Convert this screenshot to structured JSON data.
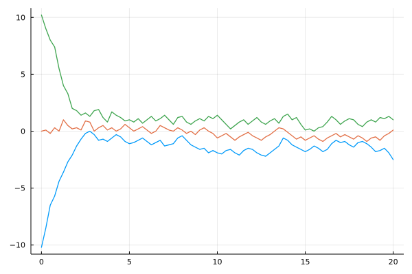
{
  "chart_data": {
    "type": "line",
    "title": "",
    "xlabel": "",
    "ylabel": "",
    "xlim": [
      -0.6,
      20.6
    ],
    "ylim": [
      -10.8,
      10.8
    ],
    "x_ticks": [
      0,
      5,
      10,
      15,
      20
    ],
    "x_tick_labels": [
      "0",
      "5",
      "10",
      "15",
      "20"
    ],
    "y_ticks": [
      -10,
      -5,
      0,
      5,
      10
    ],
    "y_tick_labels": [
      "−10",
      "−5",
      "0",
      "5",
      "10"
    ],
    "grid": true,
    "legend": "none",
    "series": [
      {
        "color": "#009AFA",
        "x": [
          0,
          0.25,
          0.5,
          0.75,
          1,
          1.25,
          1.5,
          1.75,
          2,
          2.25,
          2.5,
          2.75,
          3,
          3.25,
          3.5,
          3.75,
          4,
          4.25,
          4.5,
          4.75,
          5,
          5.25,
          5.5,
          5.75,
          6,
          6.25,
          6.5,
          6.75,
          7,
          7.25,
          7.5,
          7.75,
          8,
          8.25,
          8.5,
          8.75,
          9,
          9.25,
          9.5,
          9.75,
          10,
          10.25,
          10.5,
          10.75,
          11,
          11.25,
          11.5,
          11.75,
          12,
          12.25,
          12.5,
          12.75,
          13,
          13.25,
          13.5,
          13.75,
          14,
          14.25,
          14.5,
          14.75,
          15,
          15.25,
          15.5,
          15.75,
          16,
          16.25,
          16.5,
          16.75,
          17,
          17.25,
          17.5,
          17.75,
          18,
          18.25,
          18.5,
          18.75,
          19,
          19.25,
          19.5,
          19.75,
          20
        ],
        "values": [
          -10.2,
          -8.5,
          -6.5,
          -5.7,
          -4.4,
          -3.6,
          -2.7,
          -2.1,
          -1.3,
          -0.7,
          -0.2,
          0.0,
          -0.3,
          -0.8,
          -0.7,
          -0.9,
          -0.6,
          -0.3,
          -0.5,
          -0.9,
          -1.1,
          -1.0,
          -0.8,
          -0.6,
          -0.9,
          -1.2,
          -1.0,
          -0.8,
          -1.3,
          -1.2,
          -1.1,
          -0.6,
          -0.4,
          -0.8,
          -1.2,
          -1.4,
          -1.6,
          -1.5,
          -1.9,
          -1.7,
          -1.9,
          -2.0,
          -1.7,
          -1.6,
          -1.9,
          -2.1,
          -1.7,
          -1.5,
          -1.6,
          -1.9,
          -2.1,
          -2.2,
          -1.9,
          -1.6,
          -1.3,
          -0.6,
          -0.8,
          -1.2,
          -1.4,
          -1.6,
          -1.8,
          -1.6,
          -1.3,
          -1.5,
          -1.8,
          -1.6,
          -1.1,
          -0.8,
          -1.0,
          -0.9,
          -1.2,
          -1.4,
          -1.0,
          -0.9,
          -1.1,
          -1.4,
          -1.8,
          -1.7,
          -1.5,
          -1.9,
          -2.5
        ]
      },
      {
        "color": "#E26F46",
        "x": [
          0,
          0.25,
          0.5,
          0.75,
          1,
          1.25,
          1.5,
          1.75,
          2,
          2.25,
          2.5,
          2.75,
          3,
          3.25,
          3.5,
          3.75,
          4,
          4.25,
          4.5,
          4.75,
          5,
          5.25,
          5.5,
          5.75,
          6,
          6.25,
          6.5,
          6.75,
          7,
          7.25,
          7.5,
          7.75,
          8,
          8.25,
          8.5,
          8.75,
          9,
          9.25,
          9.5,
          9.75,
          10,
          10.25,
          10.5,
          10.75,
          11,
          11.25,
          11.5,
          11.75,
          12,
          12.25,
          12.5,
          12.75,
          13,
          13.25,
          13.5,
          13.75,
          14,
          14.25,
          14.5,
          14.75,
          15,
          15.25,
          15.5,
          15.75,
          16,
          16.25,
          16.5,
          16.75,
          17,
          17.25,
          17.5,
          17.75,
          18,
          18.25,
          18.5,
          18.75,
          19,
          19.25,
          19.5,
          19.75,
          20
        ],
        "values": [
          0.0,
          0.1,
          -0.2,
          0.3,
          0.0,
          1.0,
          0.5,
          0.2,
          0.3,
          0.1,
          0.9,
          0.8,
          0.0,
          0.3,
          0.5,
          0.1,
          0.3,
          0.0,
          0.2,
          0.6,
          0.3,
          0.0,
          0.2,
          0.4,
          0.1,
          -0.2,
          0.0,
          0.5,
          0.3,
          0.1,
          0.0,
          0.3,
          0.1,
          -0.2,
          0.0,
          -0.3,
          0.1,
          0.3,
          0.0,
          -0.2,
          -0.6,
          -0.4,
          -0.2,
          -0.5,
          -0.8,
          -0.5,
          -0.3,
          -0.1,
          -0.4,
          -0.6,
          -0.8,
          -0.5,
          -0.3,
          0.0,
          0.3,
          0.2,
          -0.1,
          -0.4,
          -0.7,
          -0.5,
          -0.8,
          -0.6,
          -0.4,
          -0.7,
          -0.9,
          -0.6,
          -0.4,
          -0.2,
          -0.5,
          -0.3,
          -0.5,
          -0.7,
          -0.4,
          -0.6,
          -0.9,
          -0.6,
          -0.5,
          -0.8,
          -0.4,
          -0.2,
          0.1
        ]
      },
      {
        "color": "#3EA44E",
        "x": [
          0,
          0.25,
          0.5,
          0.75,
          1,
          1.25,
          1.5,
          1.75,
          2,
          2.25,
          2.5,
          2.75,
          3,
          3.25,
          3.5,
          3.75,
          4,
          4.25,
          4.5,
          4.75,
          5,
          5.25,
          5.5,
          5.75,
          6,
          6.25,
          6.5,
          6.75,
          7,
          7.25,
          7.5,
          7.75,
          8,
          8.25,
          8.5,
          8.75,
          9,
          9.25,
          9.5,
          9.75,
          10,
          10.25,
          10.5,
          10.75,
          11,
          11.25,
          11.5,
          11.75,
          12,
          12.25,
          12.5,
          12.75,
          13,
          13.25,
          13.5,
          13.75,
          14,
          14.25,
          14.5,
          14.75,
          15,
          15.25,
          15.5,
          15.75,
          16,
          16.25,
          16.5,
          16.75,
          17,
          17.25,
          17.5,
          17.75,
          18,
          18.25,
          18.5,
          18.75,
          19,
          19.25,
          19.5,
          19.75,
          20
        ],
        "values": [
          10.2,
          9.0,
          8.0,
          7.4,
          5.5,
          4.0,
          3.3,
          2.0,
          1.8,
          1.4,
          1.6,
          1.3,
          1.8,
          1.9,
          1.2,
          0.8,
          1.7,
          1.4,
          1.2,
          0.9,
          1.0,
          0.8,
          1.1,
          0.7,
          1.0,
          1.3,
          0.9,
          1.1,
          1.4,
          1.0,
          0.6,
          1.2,
          1.3,
          0.8,
          0.6,
          0.9,
          1.1,
          0.9,
          1.3,
          1.1,
          1.4,
          1.0,
          0.6,
          0.2,
          0.5,
          0.8,
          1.0,
          0.6,
          0.9,
          1.2,
          0.8,
          0.6,
          0.9,
          1.1,
          0.7,
          1.3,
          1.5,
          1.0,
          1.2,
          0.6,
          0.1,
          0.2,
          0.0,
          0.3,
          0.4,
          0.8,
          1.3,
          1.0,
          0.6,
          0.9,
          1.1,
          1.0,
          0.6,
          0.4,
          0.8,
          1.0,
          0.8,
          1.2,
          1.1,
          1.3,
          1.0
        ]
      }
    ]
  }
}
